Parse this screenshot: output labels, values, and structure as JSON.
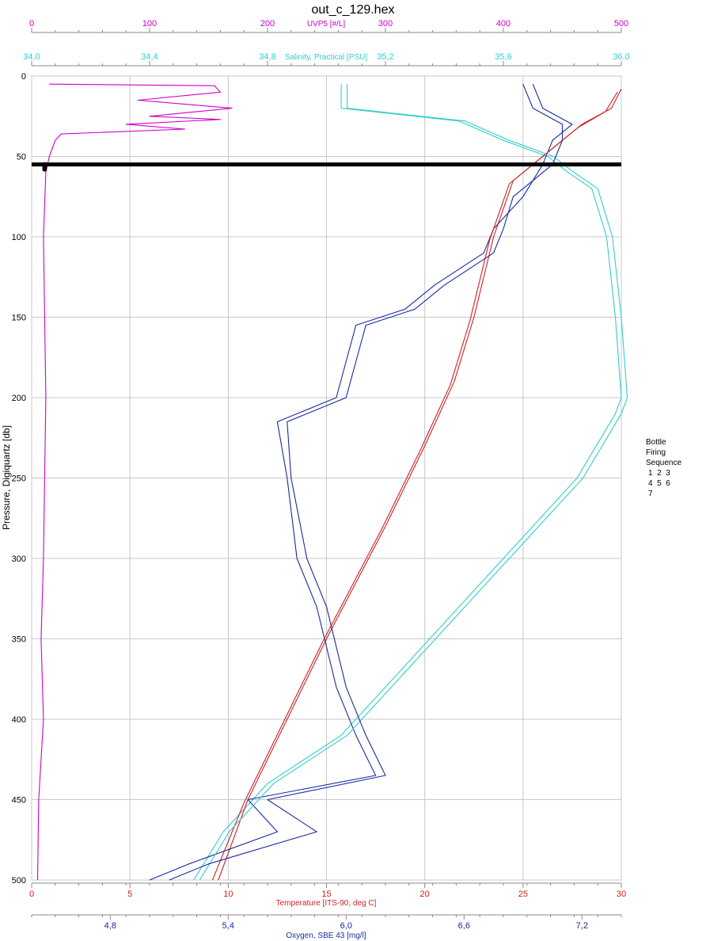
{
  "chart_data": {
    "type": "line",
    "title": "out_c_129.hex",
    "y_axis": {
      "label": "Pressure, Digiquartz [db]",
      "range": [
        0,
        500
      ],
      "inverted": true,
      "ticks": [
        "0",
        "50",
        "100",
        "150",
        "200",
        "250",
        "300",
        "350",
        "400",
        "450",
        "500"
      ]
    },
    "x_axes": {
      "uvp": {
        "label": "UVP5 [#/L]",
        "range": [
          0,
          500
        ],
        "ticks": [
          "0",
          "100",
          "200",
          "300",
          "400",
          "500"
        ],
        "color": "#cc00cc",
        "position": "top"
      },
      "salinity": {
        "label": "Salinity, Practical [PSU]",
        "range": [
          34.0,
          36.0
        ],
        "ticks": [
          "34,0",
          "34,4",
          "34,8",
          "35,2",
          "35,6",
          "36,0"
        ],
        "color": "#33cccc",
        "position": "top"
      },
      "temperature": {
        "label": "Temperature [ITS-90, deg C]",
        "range": [
          0,
          30
        ],
        "ticks": [
          "0",
          "5",
          "10",
          "15",
          "20",
          "25",
          "30"
        ],
        "color": "#cc2222",
        "position": "bottom"
      },
      "oxygen": {
        "label": "Oxygen, SBE 43 [mg/l]",
        "range": [
          4.4,
          7.4
        ],
        "ticks": [
          "4,8",
          "5,4",
          "6,0",
          "6,6",
          "7,2"
        ],
        "color": "#1a2a9e",
        "position": "bottom"
      }
    },
    "series": [
      {
        "axis": "uvp",
        "color": "#cc00cc",
        "points": [
          [
            15,
            5
          ],
          [
            155,
            6
          ],
          [
            160,
            10
          ],
          [
            90,
            15
          ],
          [
            170,
            20
          ],
          [
            100,
            25
          ],
          [
            160,
            27
          ],
          [
            80,
            30
          ],
          [
            130,
            33
          ],
          [
            25,
            36
          ],
          [
            20,
            40
          ],
          [
            15,
            50
          ],
          [
            12,
            60
          ],
          [
            10,
            100
          ],
          [
            12,
            200
          ],
          [
            10,
            300
          ],
          [
            8,
            350
          ],
          [
            10,
            400
          ],
          [
            6,
            450
          ],
          [
            5,
            500
          ]
        ]
      },
      {
        "axis": "salinity",
        "color": "#33cccc",
        "points": [
          [
            35.05,
            5
          ],
          [
            35.05,
            20
          ],
          [
            35.45,
            28
          ],
          [
            35.6,
            40
          ],
          [
            35.75,
            50
          ],
          [
            35.82,
            60
          ],
          [
            35.9,
            70
          ],
          [
            35.95,
            100
          ],
          [
            35.98,
            150
          ],
          [
            36.0,
            200
          ],
          [
            35.98,
            210
          ],
          [
            35.85,
            250
          ],
          [
            35.6,
            300
          ],
          [
            35.35,
            350
          ],
          [
            35.05,
            410
          ],
          [
            34.8,
            440
          ],
          [
            34.65,
            470
          ],
          [
            34.55,
            500
          ]
        ]
      },
      {
        "axis": "temperature",
        "color": "#cc2222",
        "points": [
          [
            30,
            8
          ],
          [
            29.5,
            20
          ],
          [
            28,
            30
          ],
          [
            26.5,
            45
          ],
          [
            25.5,
            55
          ],
          [
            24.5,
            65
          ],
          [
            23.5,
            100
          ],
          [
            22.5,
            150
          ],
          [
            21.5,
            190
          ],
          [
            20,
            230
          ],
          [
            18,
            280
          ],
          [
            15,
            350
          ],
          [
            13,
            400
          ],
          [
            11,
            450
          ],
          [
            9.5,
            500
          ]
        ]
      },
      {
        "axis": "oxygen",
        "color": "#1a2a9e",
        "points": [
          [
            6.95,
            5
          ],
          [
            7.0,
            20
          ],
          [
            7.15,
            30
          ],
          [
            7.05,
            40
          ],
          [
            7.0,
            55
          ],
          [
            6.9,
            75
          ],
          [
            6.75,
            95
          ],
          [
            6.7,
            110
          ],
          [
            6.45,
            130
          ],
          [
            6.3,
            145
          ],
          [
            6.05,
            155
          ],
          [
            5.95,
            200
          ],
          [
            5.65,
            215
          ],
          [
            5.7,
            250
          ],
          [
            5.75,
            300
          ],
          [
            5.85,
            330
          ],
          [
            5.95,
            380
          ],
          [
            6.05,
            410
          ],
          [
            6.15,
            435
          ],
          [
            5.5,
            450
          ],
          [
            5.65,
            470
          ],
          [
            5.2,
            490
          ],
          [
            5.0,
            500
          ]
        ]
      },
      {
        "axis": "temperature",
        "color": "#cc2222",
        "points": [
          [
            29.8,
            10
          ],
          [
            29.2,
            22
          ],
          [
            27.8,
            32
          ],
          [
            26.3,
            47
          ],
          [
            25.3,
            57
          ],
          [
            24.3,
            67
          ],
          [
            23.3,
            102
          ],
          [
            22.3,
            152
          ],
          [
            21.3,
            192
          ],
          [
            19.8,
            232
          ],
          [
            17.8,
            282
          ],
          [
            14.8,
            352
          ],
          [
            12.8,
            402
          ],
          [
            10.8,
            452
          ],
          [
            9.2,
            500
          ]
        ]
      },
      {
        "axis": "salinity",
        "color": "#33cccc",
        "points": [
          [
            35.07,
            5
          ],
          [
            35.07,
            20
          ],
          [
            35.47,
            28
          ],
          [
            35.62,
            40
          ],
          [
            35.77,
            50
          ],
          [
            35.84,
            60
          ],
          [
            35.92,
            70
          ],
          [
            35.97,
            100
          ],
          [
            36.0,
            150
          ],
          [
            36.02,
            200
          ],
          [
            36.0,
            210
          ],
          [
            35.87,
            250
          ],
          [
            35.62,
            300
          ],
          [
            35.37,
            350
          ],
          [
            35.07,
            410
          ],
          [
            34.82,
            440
          ],
          [
            34.67,
            470
          ],
          [
            34.57,
            500
          ]
        ]
      },
      {
        "axis": "oxygen",
        "color": "#1a2a9e",
        "points": [
          [
            6.9,
            5
          ],
          [
            6.95,
            20
          ],
          [
            7.1,
            30
          ],
          [
            7.1,
            40
          ],
          [
            7.05,
            55
          ],
          [
            6.85,
            75
          ],
          [
            6.8,
            95
          ],
          [
            6.75,
            110
          ],
          [
            6.5,
            130
          ],
          [
            6.35,
            145
          ],
          [
            6.1,
            155
          ],
          [
            6.0,
            200
          ],
          [
            5.7,
            215
          ],
          [
            5.72,
            250
          ],
          [
            5.8,
            300
          ],
          [
            5.9,
            330
          ],
          [
            6.0,
            380
          ],
          [
            6.1,
            410
          ],
          [
            6.2,
            435
          ],
          [
            5.6,
            450
          ],
          [
            5.85,
            470
          ],
          [
            5.3,
            490
          ],
          [
            5.1,
            500
          ]
        ]
      }
    ],
    "bottle_marker_pressure": 55,
    "bottle_marker_uvp": 11,
    "grid": true,
    "legend": {
      "title_lines": [
        "Bottle",
        "Firing",
        "Sequence"
      ],
      "rows": [
        "1  2  3",
        "4  5  6",
        "7"
      ]
    }
  }
}
